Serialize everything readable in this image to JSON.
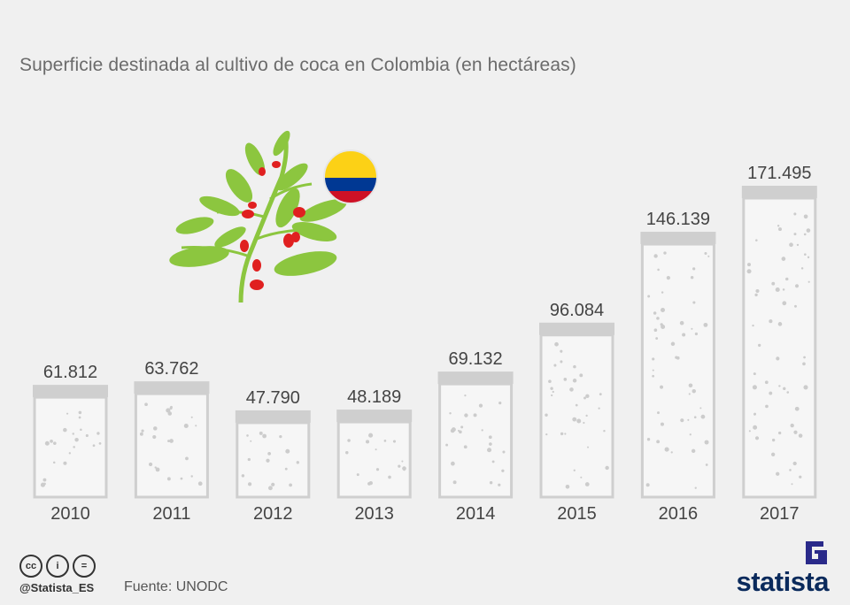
{
  "title": "Superficie destinada al cultivo de coca en Colombia (en hectáreas)",
  "chart_data": {
    "type": "bar",
    "title": "Superficie destinada al cultivo de coca en Colombia (en hectáreas)",
    "categories": [
      "2010",
      "2011",
      "2012",
      "2013",
      "2014",
      "2015",
      "2016",
      "2017"
    ],
    "values": [
      61812,
      63762,
      47790,
      48189,
      69132,
      96084,
      146139,
      171495
    ],
    "value_labels": [
      "61.812",
      "63.762",
      "47.790",
      "48.189",
      "69.132",
      "96.084",
      "146.139",
      "171.495"
    ],
    "xlabel": "",
    "ylabel": "",
    "ylim": [
      0,
      171495
    ],
    "grid": false,
    "legend": "none"
  },
  "colors": {
    "background": "#f0f0f0",
    "bar_outline": "#cfcfcf",
    "bar_lid": "#cfcfcf",
    "bar_fill": "#f6f6f6",
    "dots": "#cccccc",
    "leaf": "#8cc63f",
    "berry": "#e02020",
    "brand": "#0a2a5c"
  },
  "icons": [
    "coca-plant-illustration",
    "colombia-flag-icon",
    "cc-icon",
    "by-icon",
    "nd-icon",
    "statista-logo-icon"
  ],
  "footer": {
    "handle": "@Statista_ES",
    "source": "Fuente: UNODC",
    "cc": "cc",
    "by": "i",
    "nd": "=",
    "brand": "statista"
  }
}
